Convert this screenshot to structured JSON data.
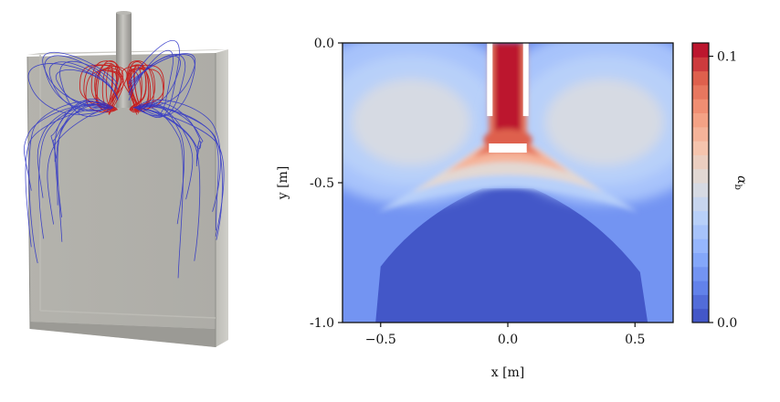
{
  "chart_data": [
    {
      "type": "image",
      "description_role": "3d-streamline-render",
      "series": [
        {
          "color": "#c81414"
        },
        {
          "color": "#2a30c8"
        }
      ]
    },
    {
      "type": "heatmap",
      "title": "",
      "xlabel": "x [m]",
      "ylabel": "y [m]",
      "xlim": [
        -0.65,
        0.65
      ],
      "ylim": [
        -1.0,
        0.0
      ],
      "xticks": [
        -0.5,
        0.0,
        0.5
      ],
      "xtick_labels": [
        "−0.5",
        "0.0",
        "0.5"
      ],
      "yticks": [
        0.0,
        -0.5,
        -1.0
      ],
      "ytick_labels": [
        "0.0",
        "-0.5",
        "-1.0"
      ],
      "colorbar": {
        "label": "α_b",
        "label_main": "α",
        "label_sub": "b",
        "min": 0.0,
        "max": 0.105,
        "ticks": [
          0.0,
          0.1
        ],
        "tick_labels": [
          "0.0",
          "0.1"
        ],
        "colormap": "coolwarm",
        "levels": 20
      },
      "field": {
        "background_level": 0.02,
        "jet_core_value": 0.1,
        "nozzle_x_range": [
          -0.06,
          0.06
        ],
        "nozzle_y_range": [
          0.0,
          -0.34
        ],
        "nozzle_exit_y": -0.34,
        "plume_spread_to_y": -0.62,
        "recirculation_cells": [
          {
            "side": "left",
            "center": [
              -0.38,
              -0.3
            ],
            "value": 0.048
          },
          {
            "side": "right",
            "center": [
              0.38,
              -0.3
            ],
            "value": 0.052
          }
        ],
        "lower_region_value": 0.0
      }
    }
  ]
}
